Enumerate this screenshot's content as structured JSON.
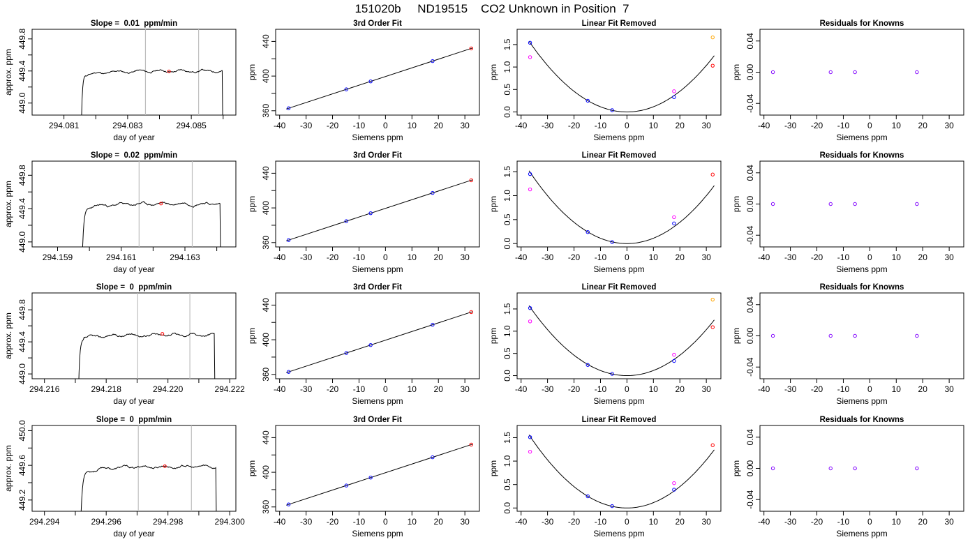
{
  "figure": {
    "title": "151020b     ND19515    CO2 Unknown in Position  7"
  },
  "colors": {
    "line": "#000000",
    "marker_blue": "#0000ff",
    "marker_magenta": "#ff00ff",
    "marker_purple": "#8000ff",
    "marker_red": "#ff0000",
    "marker_orange": "#ffa500",
    "vline": "#bebebe"
  },
  "chart_data": [
    {
      "row": 1,
      "panel": "trace",
      "type": "line",
      "title": "Slope =  0.01  ppm/min",
      "xlabel": "day of year",
      "ylabel": "approx. ppm",
      "xlim": [
        294.08,
        294.0864
      ],
      "ylim": [
        448.85,
        449.92
      ],
      "xticks": [
        294.081,
        294.082,
        294.083,
        294.084,
        294.085,
        294.086
      ],
      "xticklabels": [
        "294.081",
        "",
        "294.083",
        "",
        "294.085",
        ""
      ],
      "yticks": [
        449.0,
        449.2,
        449.4,
        449.6,
        449.8
      ],
      "yticklabels": [
        "449.0",
        "",
        "449.4",
        "",
        "449.8"
      ],
      "vlines": [
        294.08356,
        294.08523
      ],
      "marker": {
        "x": 294.0843,
        "y": 449.395
      },
      "trace": {
        "start": 294.08153,
        "end": 294.08597,
        "rise": 0.00015,
        "level": 449.4,
        "base": 448.2,
        "amp": 0.015,
        "seed": 11
      }
    },
    {
      "row": 1,
      "panel": "fit",
      "type": "scatter",
      "title": "3rd Order Fit",
      "xlabel": "Siemens ppm",
      "ylabel": "ppm",
      "xlim": [
        -41.5,
        35.5
      ],
      "ylim": [
        355,
        454
      ],
      "xticks": [
        -40,
        -30,
        -20,
        -10,
        0,
        10,
        20,
        30
      ],
      "yticks": [
        360,
        380,
        400,
        420,
        440
      ],
      "yticklabels": [
        "360",
        "",
        "400",
        "",
        "440"
      ],
      "fit_line": {
        "slope": 1.0,
        "intercept": 399.5
      },
      "points": [
        {
          "x": -36.6,
          "y": 362.9,
          "color": "marker_blue"
        },
        {
          "x": -14.8,
          "y": 384.7,
          "color": "marker_blue"
        },
        {
          "x": -5.6,
          "y": 393.9,
          "color": "marker_blue"
        },
        {
          "x": 17.8,
          "y": 417.3,
          "color": "marker_blue"
        },
        {
          "x": 32.4,
          "y": 431.9,
          "color": "marker_red"
        }
      ]
    },
    {
      "row": 1,
      "panel": "linear_removed",
      "type": "scatter",
      "title": "Linear Fit Removed",
      "xlabel": "Siemens ppm",
      "ylabel": "ppm",
      "xlim": [
        -41.5,
        35.5
      ],
      "ylim": [
        -0.07,
        1.84
      ],
      "xticks": [
        -40,
        -30,
        -20,
        -10,
        0,
        10,
        20,
        30
      ],
      "yticks": [
        0.0,
        0.5,
        1.0,
        1.5
      ],
      "yticklabels": [
        "0.0",
        "0.5",
        "1.0",
        "1.5"
      ],
      "curve": {
        "a": 0.00115,
        "b": 0.0,
        "c": 0.0
      },
      "points": [
        {
          "x": -36.6,
          "y": 1.54,
          "color": "marker_blue"
        },
        {
          "x": -36.6,
          "y": 1.22,
          "color": "marker_magenta"
        },
        {
          "x": -14.8,
          "y": 0.25,
          "color": "marker_blue"
        },
        {
          "x": -5.6,
          "y": 0.04,
          "color": "marker_blue"
        },
        {
          "x": 17.8,
          "y": 0.33,
          "color": "marker_blue"
        },
        {
          "x": 17.8,
          "y": 0.46,
          "color": "marker_magenta"
        },
        {
          "x": 32.4,
          "y": 1.03,
          "color": "marker_red"
        },
        {
          "x": 32.4,
          "y": 1.66,
          "color": "marker_orange"
        }
      ]
    },
    {
      "row": 1,
      "panel": "residuals",
      "type": "scatter",
      "title": "Residuals for Knowns",
      "xlabel": "Siemens ppm",
      "ylabel": "ppm",
      "xlim": [
        -41.5,
        35.5
      ],
      "ylim": [
        -0.055,
        0.055
      ],
      "xticks": [
        -40,
        -30,
        -20,
        -10,
        0,
        10,
        20,
        30
      ],
      "yticks": [
        -0.04,
        0.0,
        0.04
      ],
      "yticklabels": [
        "-0.04",
        "0.00",
        "0.04"
      ],
      "points": [
        {
          "x": -36.6,
          "y": 0.0,
          "color": "marker_purple"
        },
        {
          "x": -14.8,
          "y": 0.0,
          "color": "marker_purple"
        },
        {
          "x": -5.6,
          "y": 0.0,
          "color": "marker_purple"
        },
        {
          "x": 17.8,
          "y": 0.0,
          "color": "marker_purple"
        }
      ]
    },
    {
      "row": 2,
      "panel": "trace",
      "type": "line",
      "title": "Slope =  0.02  ppm/min",
      "xlabel": "day of year",
      "ylabel": "approx. ppm",
      "xlim": [
        294.1582,
        294.1646
      ],
      "ylim": [
        448.94,
        449.97
      ],
      "xticks": [
        294.159,
        294.16,
        294.161,
        294.162,
        294.163,
        294.164
      ],
      "xticklabels": [
        "294.159",
        "",
        "294.161",
        "",
        "294.163",
        ""
      ],
      "yticks": [
        449.0,
        449.2,
        449.4,
        449.6,
        449.8
      ],
      "yticklabels": [
        "449.0",
        "",
        "449.4",
        "",
        "449.8"
      ],
      "vlines": [
        294.16156,
        294.16323
      ],
      "marker": {
        "x": 294.16225,
        "y": 449.46
      },
      "trace": {
        "start": 294.15975,
        "end": 294.1641,
        "rise": 0.00022,
        "level": 449.46,
        "base": 448.3,
        "amp": 0.017,
        "seed": 23
      }
    },
    {
      "row": 2,
      "panel": "fit",
      "type": "scatter",
      "title": "3rd Order Fit",
      "xlabel": "Siemens ppm",
      "ylabel": "ppm",
      "xlim": [
        -41.5,
        35.5
      ],
      "ylim": [
        355,
        454
      ],
      "xticks": [
        -40,
        -30,
        -20,
        -10,
        0,
        10,
        20,
        30
      ],
      "yticks": [
        360,
        380,
        400,
        420,
        440
      ],
      "yticklabels": [
        "360",
        "",
        "400",
        "",
        "440"
      ],
      "fit_line": {
        "slope": 1.0,
        "intercept": 399.5
      },
      "points": [
        {
          "x": -36.6,
          "y": 362.9,
          "color": "marker_blue"
        },
        {
          "x": -14.8,
          "y": 384.7,
          "color": "marker_blue"
        },
        {
          "x": -5.6,
          "y": 393.9,
          "color": "marker_blue"
        },
        {
          "x": 17.8,
          "y": 417.3,
          "color": "marker_blue"
        },
        {
          "x": 32.4,
          "y": 431.9,
          "color": "marker_red"
        }
      ]
    },
    {
      "row": 2,
      "panel": "linear_removed",
      "type": "scatter",
      "title": "Linear Fit Removed",
      "xlabel": "Siemens ppm",
      "ylabel": "ppm",
      "xlim": [
        -41.5,
        35.5
      ],
      "ylim": [
        -0.07,
        1.72
      ],
      "xticks": [
        -40,
        -30,
        -20,
        -10,
        0,
        10,
        20,
        30
      ],
      "yticks": [
        0.0,
        0.5,
        1.0,
        1.5
      ],
      "yticklabels": [
        "0.0",
        "0.5",
        "1.0",
        "1.5"
      ],
      "curve": {
        "a": 0.00111,
        "b": 0.0,
        "c": 0.0
      },
      "points": [
        {
          "x": -36.6,
          "y": 1.45,
          "color": "marker_blue"
        },
        {
          "x": -36.6,
          "y": 1.13,
          "color": "marker_magenta"
        },
        {
          "x": -14.8,
          "y": 0.24,
          "color": "marker_blue"
        },
        {
          "x": -5.6,
          "y": 0.03,
          "color": "marker_blue"
        },
        {
          "x": 17.8,
          "y": 0.42,
          "color": "marker_blue"
        },
        {
          "x": 17.8,
          "y": 0.55,
          "color": "marker_magenta"
        },
        {
          "x": 32.4,
          "y": 1.44,
          "color": "marker_red"
        }
      ]
    },
    {
      "row": 2,
      "panel": "residuals",
      "type": "scatter",
      "title": "Residuals for Knowns",
      "xlabel": "Siemens ppm",
      "ylabel": "ppm",
      "xlim": [
        -41.5,
        35.5
      ],
      "ylim": [
        -0.055,
        0.055
      ],
      "xticks": [
        -40,
        -30,
        -20,
        -10,
        0,
        10,
        20,
        30
      ],
      "yticks": [
        -0.04,
        0.0,
        0.04
      ],
      "yticklabels": [
        "-0.04",
        "0.00",
        "0.04"
      ],
      "points": [
        {
          "x": -36.6,
          "y": 0.0,
          "color": "marker_purple"
        },
        {
          "x": -14.8,
          "y": 0.0,
          "color": "marker_purple"
        },
        {
          "x": -5.6,
          "y": 0.0,
          "color": "marker_purple"
        },
        {
          "x": 17.8,
          "y": 0.0,
          "color": "marker_purple"
        }
      ]
    },
    {
      "row": 3,
      "panel": "trace",
      "type": "line",
      "title": "Slope =  0  ppm/min",
      "xlabel": "day of year",
      "ylabel": "approx. ppm",
      "xlim": [
        294.2156,
        294.2222
      ],
      "ylim": [
        448.94,
        450.01
      ],
      "xticks": [
        294.216,
        294.217,
        294.218,
        294.219,
        294.22,
        294.221,
        294.222
      ],
      "xticklabels": [
        "294.216",
        "",
        "294.218",
        "",
        "294.220",
        "",
        "294.222"
      ],
      "yticks": [
        449.0,
        449.2,
        449.4,
        449.6,
        449.8
      ],
      "yticklabels": [
        "449.0",
        "",
        "449.4",
        "",
        "449.8"
      ],
      "vlines": [
        294.21902,
        294.22071
      ],
      "marker": {
        "x": 294.21982,
        "y": 449.5
      },
      "trace": {
        "start": 294.21708,
        "end": 294.2215,
        "rise": 0.0002,
        "level": 449.49,
        "base": 448.3,
        "amp": 0.018,
        "seed": 37
      }
    },
    {
      "row": 3,
      "panel": "fit",
      "type": "scatter",
      "title": "3rd Order Fit",
      "xlabel": "Siemens ppm",
      "ylabel": "ppm",
      "xlim": [
        -41.5,
        35.5
      ],
      "ylim": [
        355,
        454
      ],
      "xticks": [
        -40,
        -30,
        -20,
        -10,
        0,
        10,
        20,
        30
      ],
      "yticks": [
        360,
        380,
        400,
        420,
        440
      ],
      "yticklabels": [
        "360",
        "",
        "400",
        "",
        "440"
      ],
      "fit_line": {
        "slope": 1.0,
        "intercept": 399.5
      },
      "points": [
        {
          "x": -36.6,
          "y": 362.9,
          "color": "marker_blue"
        },
        {
          "x": -14.8,
          "y": 384.7,
          "color": "marker_blue"
        },
        {
          "x": -5.6,
          "y": 393.9,
          "color": "marker_blue"
        },
        {
          "x": 17.8,
          "y": 417.3,
          "color": "marker_blue"
        },
        {
          "x": 32.4,
          "y": 431.9,
          "color": "marker_red"
        }
      ]
    },
    {
      "row": 3,
      "panel": "linear_removed",
      "type": "scatter",
      "title": "Linear Fit Removed",
      "xlabel": "Siemens ppm",
      "ylabel": "ppm",
      "xlim": [
        -41.5,
        35.5
      ],
      "ylim": [
        -0.07,
        1.86
      ],
      "xticks": [
        -40,
        -30,
        -20,
        -10,
        0,
        10,
        20,
        30
      ],
      "yticks": [
        0.0,
        0.5,
        1.0,
        1.5
      ],
      "yticklabels": [
        "0.0",
        "0.5",
        "1.0",
        "1.5"
      ],
      "curve": {
        "a": 0.00115,
        "b": 0.0,
        "c": 0.0
      },
      "points": [
        {
          "x": -36.6,
          "y": 1.52,
          "color": "marker_blue"
        },
        {
          "x": -36.6,
          "y": 1.22,
          "color": "marker_magenta"
        },
        {
          "x": -14.8,
          "y": 0.24,
          "color": "marker_blue"
        },
        {
          "x": -5.6,
          "y": 0.04,
          "color": "marker_blue"
        },
        {
          "x": 17.8,
          "y": 0.33,
          "color": "marker_blue"
        },
        {
          "x": 17.8,
          "y": 0.47,
          "color": "marker_magenta"
        },
        {
          "x": 32.4,
          "y": 1.09,
          "color": "marker_red"
        },
        {
          "x": 32.4,
          "y": 1.71,
          "color": "marker_orange"
        }
      ]
    },
    {
      "row": 3,
      "panel": "residuals",
      "type": "scatter",
      "title": "Residuals for Knowns",
      "xlabel": "Siemens ppm",
      "ylabel": "ppm",
      "xlim": [
        -41.5,
        35.5
      ],
      "ylim": [
        -0.055,
        0.055
      ],
      "xticks": [
        -40,
        -30,
        -20,
        -10,
        0,
        10,
        20,
        30
      ],
      "yticks": [
        -0.04,
        0.0,
        0.04
      ],
      "yticklabels": [
        "-0.04",
        "0.00",
        "0.04"
      ],
      "points": [
        {
          "x": -36.6,
          "y": 0.0,
          "color": "marker_purple"
        },
        {
          "x": -14.8,
          "y": 0.0,
          "color": "marker_purple"
        },
        {
          "x": -5.6,
          "y": 0.0,
          "color": "marker_purple"
        },
        {
          "x": 17.8,
          "y": 0.0,
          "color": "marker_purple"
        }
      ]
    },
    {
      "row": 4,
      "panel": "trace",
      "type": "line",
      "title": "Slope =  0  ppm/min",
      "xlabel": "day of year",
      "ylabel": "approx. ppm",
      "xlim": [
        294.2936,
        294.3002
      ],
      "ylim": [
        449.07,
        450.06
      ],
      "xticks": [
        294.294,
        294.295,
        294.296,
        294.297,
        294.298,
        294.299,
        294.3
      ],
      "xticklabels": [
        "294.294",
        "",
        "294.296",
        "",
        "294.298",
        "",
        "294.300"
      ],
      "yticks": [
        449.2,
        449.4,
        449.6,
        449.8,
        450.0
      ],
      "yticklabels": [
        "449.2",
        "",
        "449.6",
        "",
        "450.0"
      ],
      "vlines": [
        294.29704,
        294.29876
      ],
      "marker": {
        "x": 294.2979,
        "y": 449.59
      },
      "trace": {
        "start": 294.29515,
        "end": 294.29955,
        "rise": 0.00025,
        "level": 449.585,
        "base": 448.5,
        "amp": 0.015,
        "seed": 53
      }
    },
    {
      "row": 4,
      "panel": "fit",
      "type": "scatter",
      "title": "3rd Order Fit",
      "xlabel": "Siemens ppm",
      "ylabel": "ppm",
      "xlim": [
        -41.5,
        35.5
      ],
      "ylim": [
        355,
        454
      ],
      "xticks": [
        -40,
        -30,
        -20,
        -10,
        0,
        10,
        20,
        30
      ],
      "yticks": [
        360,
        380,
        400,
        420,
        440
      ],
      "yticklabels": [
        "360",
        "",
        "400",
        "",
        "440"
      ],
      "fit_line": {
        "slope": 1.0,
        "intercept": 399.5
      },
      "points": [
        {
          "x": -36.6,
          "y": 362.9,
          "color": "marker_blue"
        },
        {
          "x": -14.8,
          "y": 384.7,
          "color": "marker_blue"
        },
        {
          "x": -5.6,
          "y": 393.9,
          "color": "marker_blue"
        },
        {
          "x": 17.8,
          "y": 417.3,
          "color": "marker_blue"
        },
        {
          "x": 32.4,
          "y": 431.9,
          "color": "marker_red"
        }
      ]
    },
    {
      "row": 4,
      "panel": "linear_removed",
      "type": "scatter",
      "title": "Linear Fit Removed",
      "xlabel": "Siemens ppm",
      "ylabel": "ppm",
      "xlim": [
        -41.5,
        35.5
      ],
      "ylim": [
        -0.07,
        1.76
      ],
      "xticks": [
        -40,
        -30,
        -20,
        -10,
        0,
        10,
        20,
        30
      ],
      "yticks": [
        0.0,
        0.5,
        1.0,
        1.5
      ],
      "yticklabels": [
        "0.0",
        "0.5",
        "1.0",
        "1.5"
      ],
      "curve": {
        "a": 0.00114,
        "b": 0.0,
        "c": 0.0
      },
      "points": [
        {
          "x": -36.6,
          "y": 1.51,
          "color": "marker_blue"
        },
        {
          "x": -36.6,
          "y": 1.2,
          "color": "marker_magenta"
        },
        {
          "x": -14.8,
          "y": 0.25,
          "color": "marker_blue"
        },
        {
          "x": -5.6,
          "y": 0.04,
          "color": "marker_blue"
        },
        {
          "x": 17.8,
          "y": 0.39,
          "color": "marker_blue"
        },
        {
          "x": 17.8,
          "y": 0.53,
          "color": "marker_magenta"
        },
        {
          "x": 32.4,
          "y": 1.34,
          "color": "marker_red"
        }
      ]
    },
    {
      "row": 4,
      "panel": "residuals",
      "type": "scatter",
      "title": "Residuals for Knowns",
      "xlabel": "Siemens ppm",
      "ylabel": "ppm",
      "xlim": [
        -41.5,
        35.5
      ],
      "ylim": [
        -0.055,
        0.055
      ],
      "xticks": [
        -40,
        -30,
        -20,
        -10,
        0,
        10,
        20,
        30
      ],
      "yticks": [
        -0.04,
        0.0,
        0.04
      ],
      "yticklabels": [
        "-0.04",
        "0.00",
        "0.04"
      ],
      "points": [
        {
          "x": -36.6,
          "y": 0.0,
          "color": "marker_purple"
        },
        {
          "x": -14.8,
          "y": 0.0,
          "color": "marker_purple"
        },
        {
          "x": -5.6,
          "y": 0.0,
          "color": "marker_purple"
        },
        {
          "x": 17.8,
          "y": 0.0,
          "color": "marker_purple"
        }
      ]
    }
  ]
}
